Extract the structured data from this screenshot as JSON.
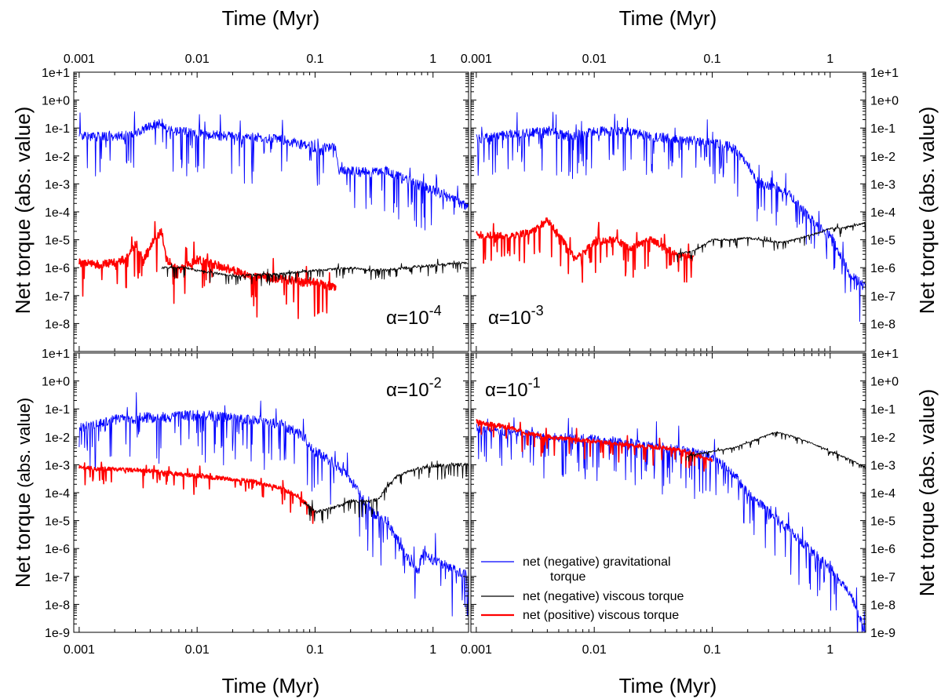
{
  "chart_data": {
    "type": "line",
    "layout": "2x2 panels, shared log-scale axes",
    "x_axis": {
      "label": "Time (Myr)",
      "scale": "log",
      "range": [
        0.0009,
        2.0
      ],
      "ticks": [
        0.001,
        0.01,
        0.1,
        1
      ],
      "tick_labels": [
        "0.001",
        "0.01",
        "0.1",
        "1"
      ]
    },
    "y_axis": {
      "scale": "log",
      "top_panels_range": [
        1e-09,
        10
      ],
      "top_panels_ticks": [
        10,
        1,
        0.1,
        0.01,
        0.001,
        0.0001,
        1e-05,
        1e-06,
        1e-07,
        1e-08
      ],
      "top_panels_tick_labels": [
        "1e+1",
        "1e+0",
        "1e-1",
        "1e-2",
        "1e-3",
        "1e-4",
        "1e-5",
        "1e-6",
        "1e-7",
        "1e-8"
      ],
      "bottom_panels_range": [
        1e-09,
        10
      ],
      "bottom_panels_ticks": [
        10,
        1,
        0.1,
        0.01,
        0.001,
        0.0001,
        1e-05,
        1e-06,
        1e-07,
        1e-08,
        1e-09
      ],
      "bottom_panels_tick_labels": [
        "1e+1",
        "1e+0",
        "1e-1",
        "1e-2",
        "1e-3",
        "1e-4",
        "1e-5",
        "1e-6",
        "1e-7",
        "1e-8",
        "1e-9"
      ]
    },
    "y_labels": {
      "top_left": "Net torque (abs. value)",
      "top_right": "Net torque (abs. value)",
      "bottom_left_main": "Net torque",
      "bottom_left_paren": "(abs. value)",
      "bottom_right": "Net torque (abs. value)"
    },
    "legend": [
      {
        "name": "net (negative) gravitational",
        "name_line2": "torque",
        "color": "#0000ff"
      },
      {
        "name": "net (negative) viscous torque",
        "color": "#000000"
      },
      {
        "name": "net (positive) viscous torque",
        "color": "#ff0000"
      }
    ],
    "panels": [
      {
        "id": "top-left",
        "alpha_base": "α=10",
        "alpha_exp": "-4",
        "series": [
          {
            "name": "net (negative) gravitational torque",
            "color": "#0000ff",
            "noise": 1.4,
            "seed": 11,
            "points": [
              [
                0.001,
                0.05
              ],
              [
                0.002,
                0.05
              ],
              [
                0.003,
                0.06
              ],
              [
                0.004,
                0.12
              ],
              [
                0.005,
                0.15
              ],
              [
                0.006,
                0.08
              ],
              [
                0.008,
                0.07
              ],
              [
                0.01,
                0.06
              ],
              [
                0.02,
                0.05
              ],
              [
                0.05,
                0.04
              ],
              [
                0.1,
                0.02
              ],
              [
                0.15,
                0.02
              ],
              [
                0.16,
                0.003
              ],
              [
                0.3,
                0.0025
              ],
              [
                0.4,
                0.003
              ],
              [
                0.7,
                0.001
              ],
              [
                1.0,
                0.0006
              ],
              [
                2.0,
                0.00015
              ]
            ]
          },
          {
            "name": "net (positive) viscous torque",
            "color": "#ff0000",
            "noise": 1.2,
            "seed": 21,
            "points": [
              [
                0.001,
                1.5e-06
              ],
              [
                0.0015,
                1.3e-06
              ],
              [
                0.002,
                1.5e-06
              ],
              [
                0.0025,
                2e-06
              ],
              [
                0.003,
                8e-06
              ],
              [
                0.0035,
                1.8e-06
              ],
              [
                0.004,
                6e-06
              ],
              [
                0.005,
                2e-05
              ],
              [
                0.0055,
                2e-06
              ],
              [
                0.007,
                8e-07
              ],
              [
                0.01,
                2e-06
              ],
              [
                0.02,
                8e-07
              ],
              [
                0.03,
                5e-07
              ],
              [
                0.05,
                4e-07
              ],
              [
                0.08,
                3e-07
              ],
              [
                0.1,
                3e-07
              ],
              [
                0.15,
                2e-07
              ]
            ]
          },
          {
            "name": "net (negative) viscous torque",
            "color": "#000000",
            "noise": 0.35,
            "seed": 31,
            "points": [
              [
                0.005,
                1e-06
              ],
              [
                0.008,
                1e-06
              ],
              [
                0.01,
                8e-07
              ],
              [
                0.02,
                5e-07
              ],
              [
                0.05,
                6e-07
              ],
              [
                0.1,
                8e-07
              ],
              [
                0.15,
                9e-07
              ],
              [
                0.2,
                1e-06
              ],
              [
                0.3,
                8e-07
              ],
              [
                0.5,
                9e-07
              ],
              [
                0.7,
                1.1e-06
              ],
              [
                1.0,
                1.2e-06
              ],
              [
                1.5,
                1.4e-06
              ],
              [
                2.0,
                1.5e-06
              ]
            ]
          }
        ]
      },
      {
        "id": "top-right",
        "alpha_base": "α=10",
        "alpha_exp": "-3",
        "series": [
          {
            "name": "net (negative) gravitational torque",
            "color": "#0000ff",
            "noise": 1.4,
            "seed": 12,
            "points": [
              [
                0.001,
                0.04
              ],
              [
                0.002,
                0.06
              ],
              [
                0.004,
                0.08
              ],
              [
                0.006,
                0.05
              ],
              [
                0.01,
                0.08
              ],
              [
                0.02,
                0.07
              ],
              [
                0.03,
                0.05
              ],
              [
                0.05,
                0.04
              ],
              [
                0.1,
                0.03
              ],
              [
                0.15,
                0.02
              ],
              [
                0.2,
                0.005
              ],
              [
                0.25,
                0.001
              ],
              [
                0.35,
                0.0008
              ],
              [
                0.5,
                0.0003
              ],
              [
                0.6,
                0.0001
              ],
              [
                0.8,
                3e-05
              ],
              [
                1.0,
                1.5e-05
              ],
              [
                1.5,
                5e-07
              ],
              [
                2.0,
                2e-07
              ]
            ]
          },
          {
            "name": "net (positive) viscous torque",
            "color": "#ff0000",
            "noise": 1.0,
            "seed": 22,
            "points": [
              [
                0.001,
                1.5e-05
              ],
              [
                0.002,
                1.3e-05
              ],
              [
                0.003,
                2e-05
              ],
              [
                0.004,
                5e-05
              ],
              [
                0.005,
                1.5e-05
              ],
              [
                0.007,
                2e-06
              ],
              [
                0.01,
                8e-06
              ],
              [
                0.015,
                1e-05
              ],
              [
                0.02,
                5e-06
              ],
              [
                0.03,
                1e-05
              ],
              [
                0.05,
                3e-06
              ],
              [
                0.07,
                2e-06
              ]
            ]
          },
          {
            "name": "net (negative) viscous torque",
            "color": "#000000",
            "noise": 0.3,
            "seed": 32,
            "points": [
              [
                0.05,
                3e-06
              ],
              [
                0.07,
                4e-06
              ],
              [
                0.1,
                1e-05
              ],
              [
                0.15,
                1e-05
              ],
              [
                0.2,
                1.2e-05
              ],
              [
                0.3,
                9e-06
              ],
              [
                0.4,
                8e-06
              ],
              [
                0.5,
                1e-05
              ],
              [
                0.7,
                1.5e-05
              ],
              [
                1.0,
                2.5e-05
              ],
              [
                1.5,
                3e-05
              ],
              [
                2.0,
                4e-05
              ]
            ]
          }
        ]
      },
      {
        "id": "bottom-left",
        "alpha_base": "α=10",
        "alpha_exp": "-2",
        "series": [
          {
            "name": "net (negative) gravitational torque",
            "color": "#0000ff",
            "noise": 1.5,
            "seed": 13,
            "points": [
              [
                0.001,
                0.02
              ],
              [
                0.002,
                0.04
              ],
              [
                0.004,
                0.05
              ],
              [
                0.006,
                0.05
              ],
              [
                0.01,
                0.06
              ],
              [
                0.02,
                0.05
              ],
              [
                0.05,
                0.03
              ],
              [
                0.08,
                0.01
              ],
              [
                0.1,
                0.003
              ],
              [
                0.15,
                0.001
              ],
              [
                0.2,
                0.0003
              ],
              [
                0.3,
                2e-05
              ],
              [
                0.4,
                1e-05
              ],
              [
                0.5,
                2e-06
              ],
              [
                0.6,
                5e-07
              ],
              [
                0.75,
                1.2e-07
              ],
              [
                0.8,
                7e-07
              ],
              [
                1.0,
                4e-07
              ],
              [
                2.0,
                1e-07
              ]
            ]
          },
          {
            "name": "net (positive) viscous torque",
            "color": "#ff0000",
            "noise": 0.6,
            "seed": 23,
            "points": [
              [
                0.001,
                0.0008
              ],
              [
                0.002,
                0.0007
              ],
              [
                0.004,
                0.0006
              ],
              [
                0.006,
                0.0005
              ],
              [
                0.01,
                0.0004
              ],
              [
                0.02,
                0.0003
              ],
              [
                0.03,
                0.00025
              ],
              [
                0.05,
                0.00015
              ],
              [
                0.07,
                8e-05
              ],
              [
                0.1,
                2e-05
              ]
            ]
          },
          {
            "name": "net (negative) viscous torque",
            "color": "#000000",
            "noise": 0.5,
            "seed": 33,
            "points": [
              [
                0.08,
                5e-05
              ],
              [
                0.1,
                2e-05
              ],
              [
                0.15,
                3e-05
              ],
              [
                0.2,
                5e-05
              ],
              [
                0.3,
                5e-05
              ],
              [
                0.35,
                6e-05
              ],
              [
                0.4,
                0.00015
              ],
              [
                0.5,
                0.0004
              ],
              [
                0.7,
                0.0007
              ],
              [
                1.0,
                0.0009
              ],
              [
                1.5,
                0.001
              ],
              [
                2.0,
                0.001
              ]
            ]
          }
        ]
      },
      {
        "id": "bottom-right",
        "alpha_base": "α=10",
        "alpha_exp": "-1",
        "series": [
          {
            "name": "net (negative) gravitational torque",
            "color": "#0000ff",
            "noise": 1.4,
            "seed": 14,
            "points": [
              [
                0.001,
                0.02
              ],
              [
                0.002,
                0.015
              ],
              [
                0.004,
                0.01
              ],
              [
                0.01,
                0.008
              ],
              [
                0.02,
                0.006
              ],
              [
                0.04,
                0.004
              ],
              [
                0.06,
                0.003
              ],
              [
                0.1,
                0.002
              ],
              [
                0.15,
                0.0005
              ],
              [
                0.2,
                0.0001
              ],
              [
                0.3,
                2e-05
              ],
              [
                0.5,
                3e-06
              ],
              [
                0.7,
                8e-07
              ],
              [
                1.0,
                2e-07
              ],
              [
                1.5,
                2e-08
              ],
              [
                2.0,
                1e-09
              ]
            ]
          },
          {
            "name": "net (positive) viscous torque",
            "color": "#ff0000",
            "noise": 0.6,
            "seed": 24,
            "points": [
              [
                0.001,
                0.035
              ],
              [
                0.002,
                0.02
              ],
              [
                0.003,
                0.012
              ],
              [
                0.005,
                0.009
              ],
              [
                0.01,
                0.007
              ],
              [
                0.02,
                0.005
              ],
              [
                0.04,
                0.004
              ],
              [
                0.06,
                0.003
              ],
              [
                0.08,
                0.002
              ],
              [
                0.1,
                0.0015
              ]
            ]
          },
          {
            "name": "net (negative) viscous torque",
            "color": "#000000",
            "noise": 0.2,
            "seed": 34,
            "points": [
              [
                0.06,
                0.002
              ],
              [
                0.1,
                0.003
              ],
              [
                0.15,
                0.004
              ],
              [
                0.2,
                0.006
              ],
              [
                0.3,
                0.012
              ],
              [
                0.35,
                0.015
              ],
              [
                0.5,
                0.01
              ],
              [
                0.7,
                0.006
              ],
              [
                1.0,
                0.003
              ],
              [
                1.5,
                0.0015
              ],
              [
                2.0,
                0.0008
              ]
            ]
          }
        ]
      }
    ]
  }
}
